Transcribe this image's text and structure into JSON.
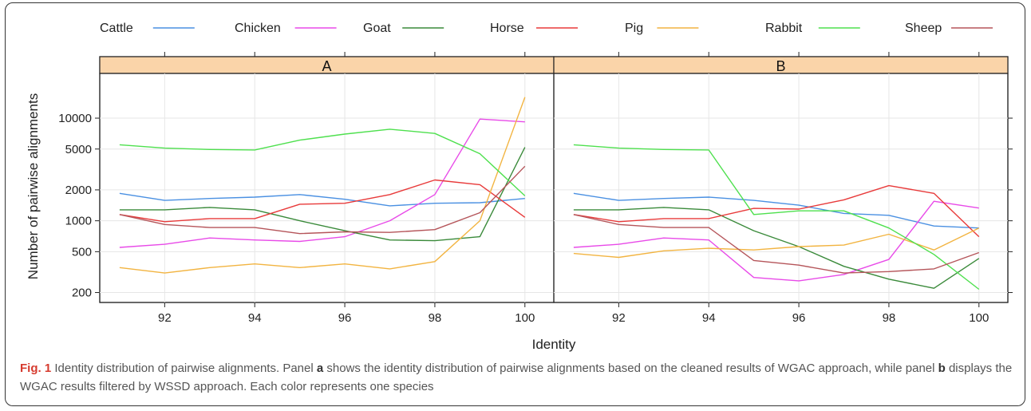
{
  "chart_data": {
    "type": "line",
    "xlabel": "Identity",
    "ylabel": "Number of pairwise alignments",
    "y_scale": "log",
    "xlim": [
      90.7,
      100.5
    ],
    "ylim": [
      160,
      22000
    ],
    "x_ticks": [
      92,
      94,
      96,
      98,
      100
    ],
    "y_ticks": [
      200,
      500,
      1000,
      2000,
      5000,
      10000
    ],
    "x_tick_labels": [
      "92",
      "94",
      "96",
      "98",
      "100"
    ],
    "y_tick_labels": [
      "200",
      "500",
      "1000",
      "2000",
      "5000",
      "10000"
    ],
    "legend_position": "top",
    "strip_color": "#fad4a9",
    "x": [
      91,
      92,
      93,
      94,
      95,
      96,
      97,
      98,
      99,
      100
    ],
    "panels": [
      {
        "title": "A",
        "series": [
          {
            "name": "Cattle",
            "color": "#4a90e2",
            "values": [
              1850,
              1580,
              1650,
              1700,
              1800,
              1620,
              1400,
              1480,
              1500,
              1650
            ]
          },
          {
            "name": "Chicken",
            "color": "#e84ae8",
            "values": [
              550,
              590,
              680,
              650,
              630,
              700,
              1000,
              1800,
              9800,
              9200
            ]
          },
          {
            "name": "Goat",
            "color": "#3a8a3a",
            "values": [
              1280,
              1280,
              1350,
              1280,
              1000,
              800,
              650,
              640,
              700,
              5200
            ]
          },
          {
            "name": "Horse",
            "color": "#e83a3a",
            "values": [
              1150,
              980,
              1050,
              1050,
              1450,
              1480,
              1800,
              2500,
              2250,
              1080
            ]
          },
          {
            "name": "Pig",
            "color": "#f2b441",
            "values": [
              350,
              310,
              350,
              380,
              350,
              380,
              340,
              400,
              1000,
              16000
            ]
          },
          {
            "name": "Rabbit",
            "color": "#4ee04e",
            "values": [
              5500,
              5100,
              4950,
              4900,
              6100,
              7000,
              7800,
              7100,
              4500,
              1750
            ]
          },
          {
            "name": "Sheep",
            "color": "#b5555a",
            "values": [
              1150,
              920,
              860,
              860,
              750,
              780,
              770,
              820,
              1200,
              3400
            ]
          }
        ]
      },
      {
        "title": "B",
        "series": [
          {
            "name": "Cattle",
            "color": "#4a90e2",
            "values": [
              1850,
              1580,
              1650,
              1700,
              1580,
              1420,
              1180,
              1130,
              890,
              850
            ]
          },
          {
            "name": "Chicken",
            "color": "#e84ae8",
            "values": [
              550,
              590,
              680,
              650,
              280,
              260,
              300,
              420,
              1550,
              1330
            ]
          },
          {
            "name": "Goat",
            "color": "#3a8a3a",
            "values": [
              1280,
              1280,
              1350,
              1280,
              800,
              560,
              360,
              270,
              220,
              430
            ]
          },
          {
            "name": "Horse",
            "color": "#e83a3a",
            "values": [
              1150,
              980,
              1050,
              1050,
              1320,
              1300,
              1600,
              2200,
              1850,
              700
            ]
          },
          {
            "name": "Pig",
            "color": "#f2b441",
            "values": [
              480,
              440,
              510,
              540,
              520,
              560,
              580,
              740,
              520,
              850
            ]
          },
          {
            "name": "Rabbit",
            "color": "#4ee04e",
            "values": [
              5500,
              5100,
              4950,
              4900,
              1150,
              1250,
              1250,
              850,
              470,
              215
            ]
          },
          {
            "name": "Sheep",
            "color": "#b5555a",
            "values": [
              1150,
              920,
              860,
              860,
              410,
              370,
              310,
              320,
              340,
              490
            ]
          }
        ]
      }
    ]
  },
  "caption": {
    "fig_label": "Fig. 1",
    "text1": " Identity distribution of pairwise alignments. Panel ",
    "panel_a": "a",
    "text2": " shows the identity distribution of pairwise alignments based on the cleaned results of WGAC approach, while panel ",
    "panel_b": "b",
    "text3": " displays the WGAC results filtered by WSSD approach. Each color represents one species"
  }
}
